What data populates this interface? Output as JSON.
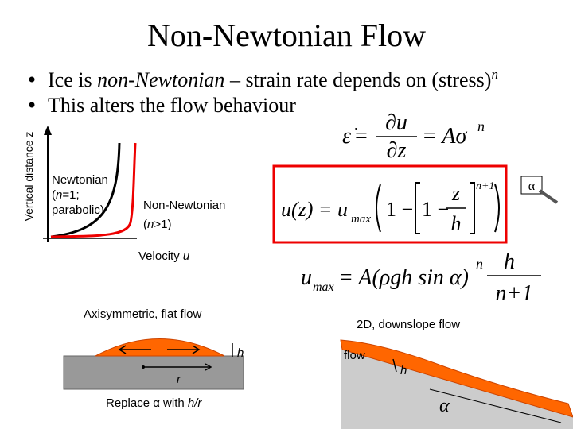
{
  "title": "Non-Newtonian Flow",
  "bullets": [
    {
      "before": "Ice is ",
      "italic": "non-Newtonian",
      "after": " – strain rate depends on (stress)",
      "superscript": "n"
    },
    {
      "before": "This alters the flow behaviour"
    }
  ],
  "profile_plot": {
    "y_label": "Vertical distance z",
    "x_label": "Velocity ",
    "x_label_var": "u",
    "newtonian": {
      "line1": "Newtonian",
      "line2_a": "(",
      "line2_var": "n",
      "line2_b": "=1;",
      "line3": "parabolic)"
    },
    "non_newtonian": {
      "line1": "Non-Newtonian",
      "line2_a": "(",
      "line2_var": "n",
      "line2_b": ">1)"
    }
  },
  "strain_rate_eq": {
    "lhs": "ε̇",
    "eq": "=",
    "num": "∂u",
    "den": "∂z",
    "rhs": "= Aσ",
    "exp": "n"
  },
  "velocity_eq": {
    "lhs": "u(z) = u",
    "sub": "max",
    "one": "1 −",
    "inner": "1 −",
    "num": "z",
    "den": "h",
    "exp": "n+1"
  },
  "umax_eq": {
    "lhs": "u",
    "sub": "max",
    "rhs": "= A(ρgh sin α)",
    "exp": "n",
    "num": "h",
    "den": "n+1"
  },
  "alpha_icon": "α",
  "axisymmetric": {
    "title": "Axisymmetric, flat flow",
    "h": "h",
    "r": "r",
    "note_a": "Replace α with ",
    "note_b": "h/r"
  },
  "downslope": {
    "title": "2D, downslope flow",
    "flow": "flow",
    "h": "h",
    "alpha": "α"
  }
}
